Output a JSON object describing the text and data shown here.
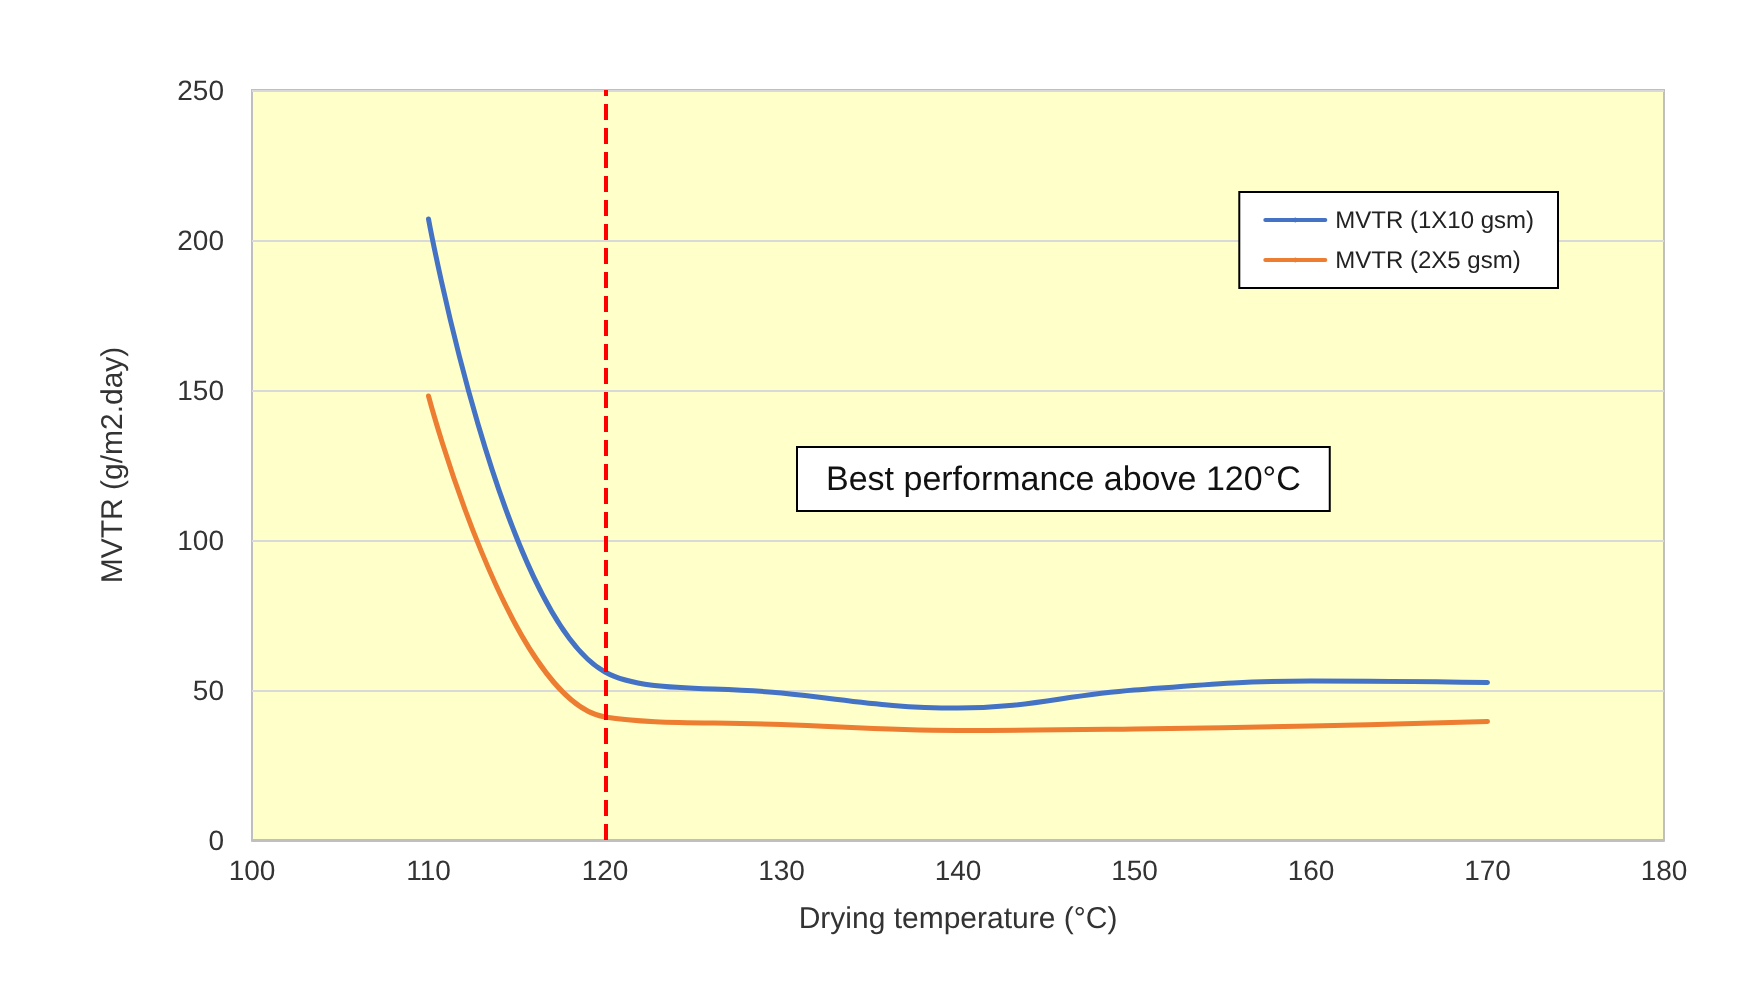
{
  "chart_data": {
    "type": "line",
    "xlabel": "Drying temperature (°C)",
    "ylabel": "MVTR (g/m2.day)",
    "x": [
      110,
      120,
      130,
      140,
      150,
      160,
      170
    ],
    "series": [
      {
        "name": "MVTR (1X10 gsm)",
        "color": "#4472c4",
        "values": [
          207,
          56,
          49,
          44,
          50,
          53,
          52.5
        ]
      },
      {
        "name": "MVTR (2X5 gsm)",
        "color": "#ed7d31",
        "values": [
          148,
          41,
          38.5,
          36.5,
          37,
          38,
          39.5
        ]
      }
    ],
    "xlim": [
      100,
      180
    ],
    "xticks": [
      100,
      110,
      120,
      130,
      140,
      150,
      160,
      170,
      180
    ],
    "ylim": [
      0,
      250
    ],
    "yticks": [
      0,
      50,
      100,
      150,
      200,
      250
    ],
    "ref_lines": [
      {
        "axis": "x",
        "value": 120,
        "color": "#ff0000",
        "line_style": "dashed"
      }
    ],
    "annotations": [
      "Best performance above 120°C"
    ],
    "grid": "y",
    "legend": "top right",
    "marker": "none",
    "line_style": "solid"
  }
}
